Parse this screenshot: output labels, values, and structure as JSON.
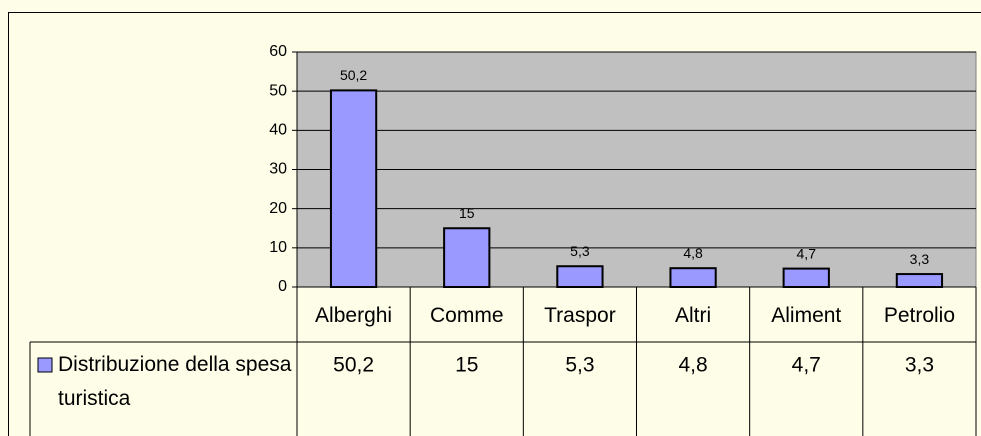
{
  "chart_data": {
    "type": "bar",
    "categories": [
      "Alberghi",
      "Comme",
      "Traspor",
      "Altri",
      "Aliment",
      "Petrolio"
    ],
    "series": [
      {
        "name": "Distribuzione della spesa turistica",
        "color": "#9999ff",
        "values": [
          50.2,
          15,
          5.3,
          4.8,
          4.7,
          3.3
        ],
        "value_labels": [
          "50,2",
          "15",
          "5,3",
          "4,8",
          "4,7",
          "3,3"
        ]
      }
    ],
    "ylim": [
      0,
      60
    ],
    "yticks": [
      0,
      10,
      20,
      30,
      40,
      50,
      60
    ],
    "grid": true
  }
}
